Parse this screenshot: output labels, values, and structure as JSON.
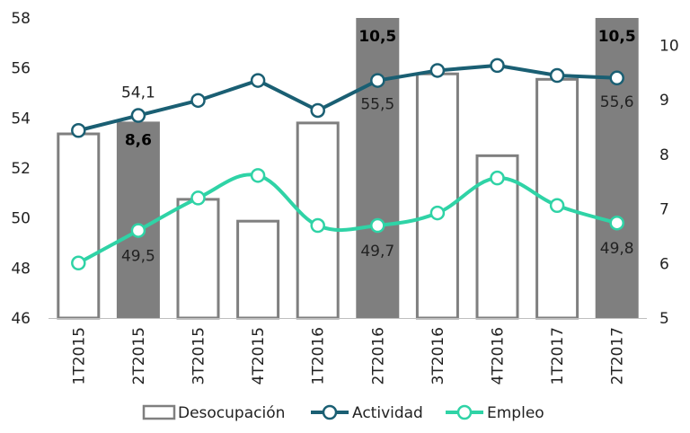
{
  "chart_data": {
    "type": "bar",
    "categories": [
      "1T2015",
      "2T2015",
      "3T2015",
      "4T2015",
      "1T2016",
      "2T2016",
      "3T2016",
      "4T2016",
      "1T2017",
      "2T2017"
    ],
    "series": [
      {
        "name": "Desocupación",
        "kind": "bar",
        "axis": "right",
        "values": [
          8.4,
          8.6,
          7.2,
          6.8,
          8.6,
          10.5,
          9.5,
          8.0,
          9.4,
          10.5
        ],
        "highlight": [
          false,
          true,
          false,
          false,
          false,
          true,
          false,
          false,
          false,
          true
        ],
        "labels": [
          "",
          "8,6",
          "",
          "",
          "",
          "10,5",
          "",
          "",
          "",
          "10,5"
        ],
        "color": "#7f7f7f",
        "highlight_color": "#7f7f7f"
      },
      {
        "name": "Actividad",
        "kind": "line",
        "axis": "left",
        "values": [
          53.5,
          54.1,
          54.7,
          55.5,
          54.3,
          55.5,
          55.9,
          56.1,
          55.7,
          55.6
        ],
        "labels": [
          "",
          "54,1",
          "",
          "",
          "",
          "55,5",
          "",
          "",
          "",
          "55,6"
        ],
        "color": "#1a5f73"
      },
      {
        "name": "Empleo",
        "kind": "line",
        "axis": "left",
        "values": [
          48.2,
          49.5,
          50.8,
          51.7,
          49.7,
          49.7,
          50.2,
          51.6,
          50.5,
          49.8
        ],
        "labels": [
          "",
          "49,5",
          "",
          "",
          "",
          "49,7",
          "",
          "",
          "",
          "49,8"
        ],
        "color": "#2fd3a6"
      }
    ],
    "y_left": {
      "lim": [
        46,
        58
      ],
      "ticks": [
        "46",
        "48",
        "50",
        "52",
        "54",
        "56",
        "58"
      ]
    },
    "y_right": {
      "lim": [
        5,
        10.5
      ],
      "ticks": [
        "5",
        "6",
        "7",
        "8",
        "9",
        "10"
      ]
    },
    "grid": false,
    "legend_position": "bottom"
  }
}
